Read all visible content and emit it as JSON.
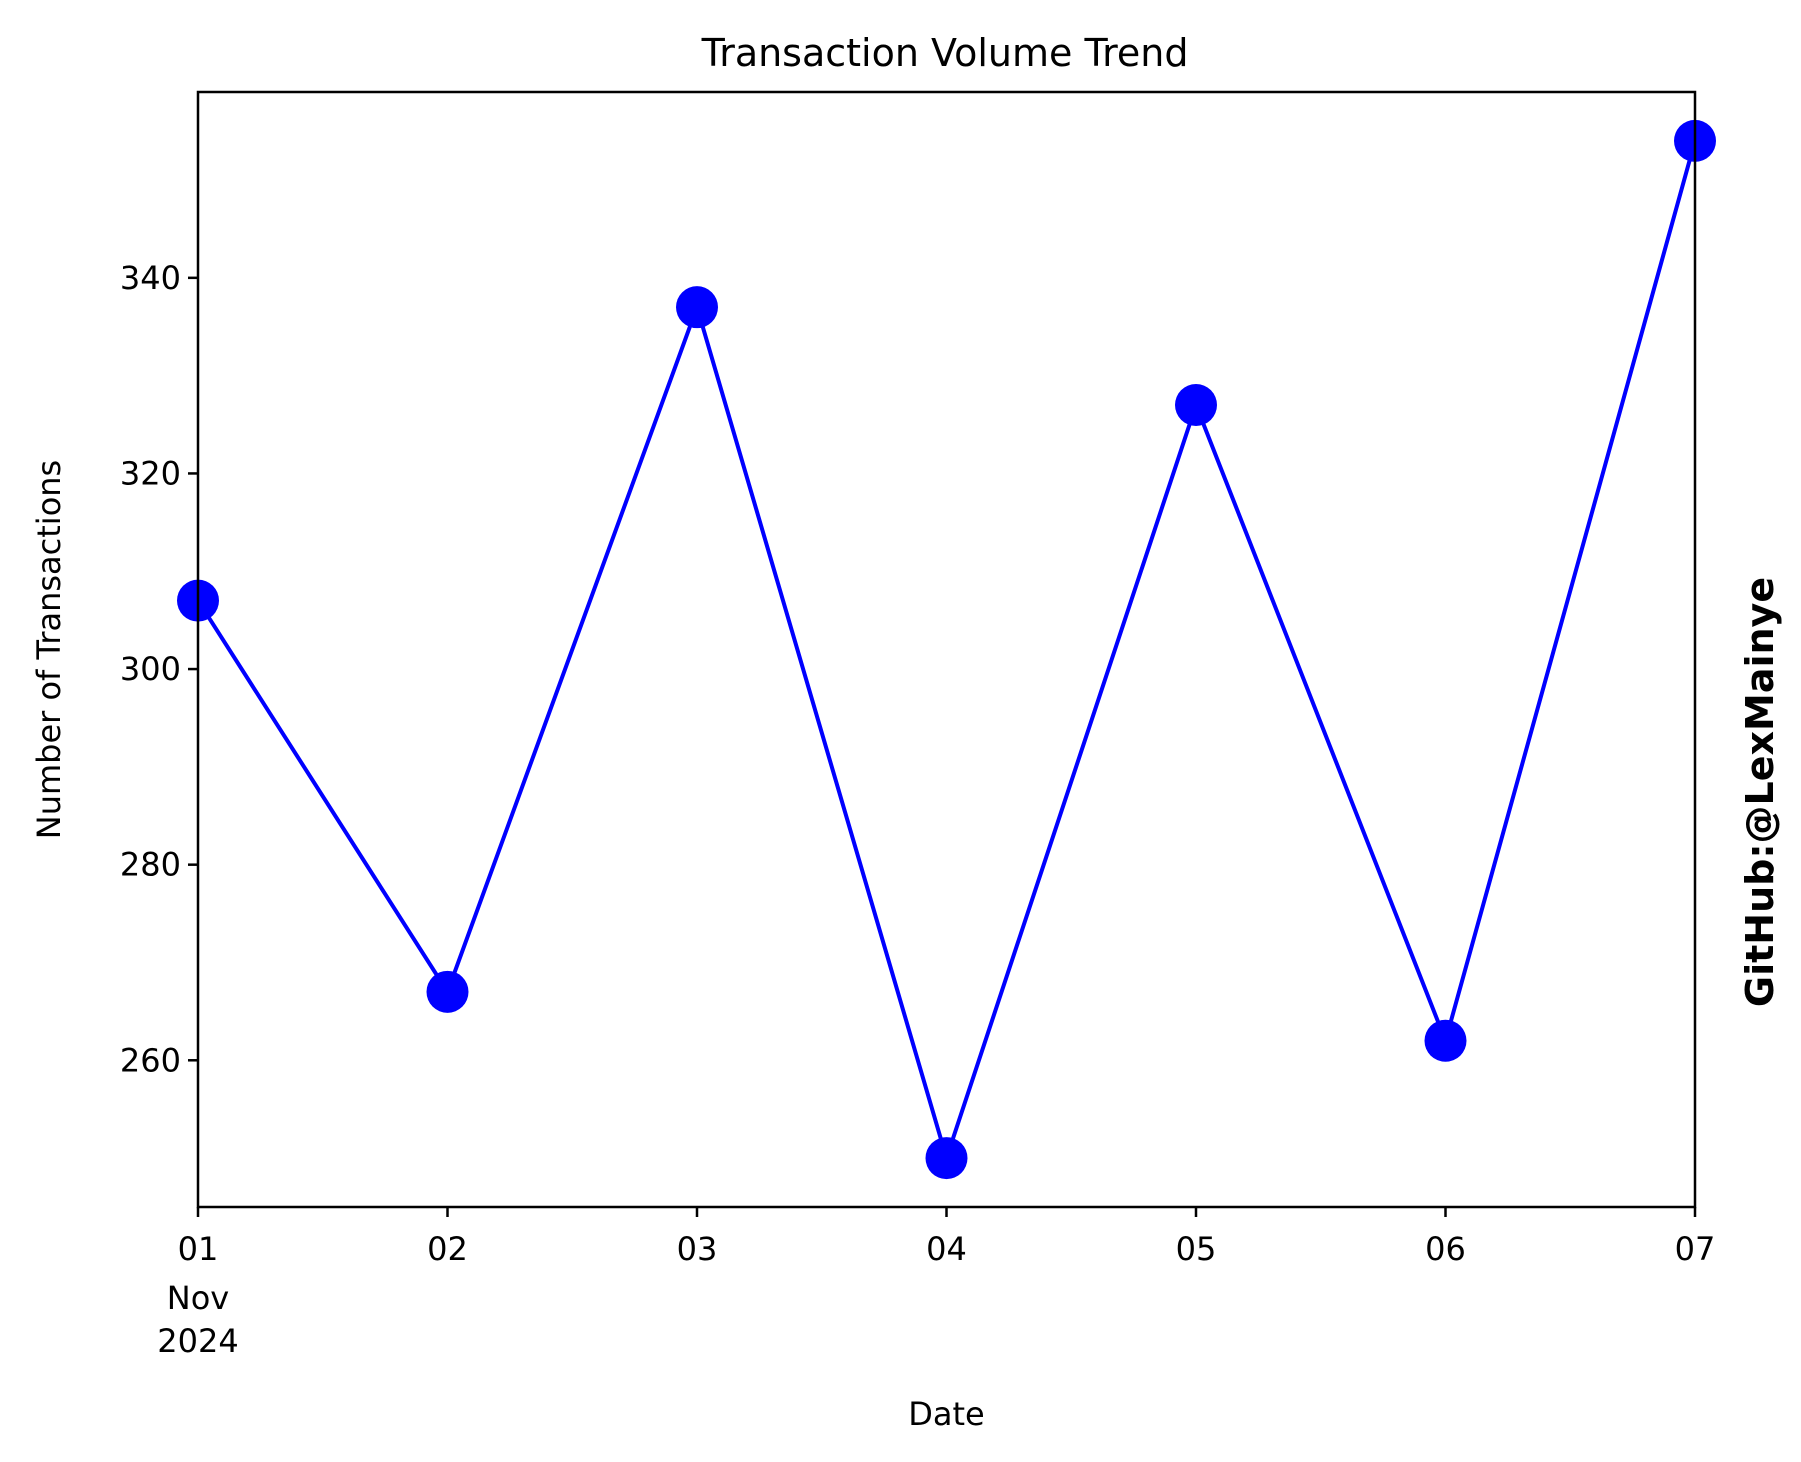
{
  "chart_data": {
    "type": "line",
    "title": "Transaction Volume Trend",
    "xlabel": "Date",
    "ylabel": "Number of Transactions",
    "x": [
      "2024-11-01",
      "2024-11-02",
      "2024-11-03",
      "2024-11-04",
      "2024-11-05",
      "2024-11-06",
      "2024-11-07"
    ],
    "x_tick_labels": [
      "01",
      "02",
      "03",
      "04",
      "05",
      "06",
      "07"
    ],
    "x_tick_sublabels": [
      "Nov",
      "2024"
    ],
    "y_ticks": [
      260,
      280,
      300,
      320,
      340
    ],
    "xlim": [
      "2024-11-01",
      "2024-11-07"
    ],
    "ylim": [
      245,
      359
    ],
    "series": [
      {
        "values": [
          307,
          267,
          337,
          250,
          327,
          262,
          354
        ],
        "color": "#0000ff",
        "marker": "circle"
      }
    ],
    "grid": false,
    "legend": "none"
  },
  "watermark": {
    "text": "GitHub:@LexMainye",
    "color": "#ff0000"
  }
}
